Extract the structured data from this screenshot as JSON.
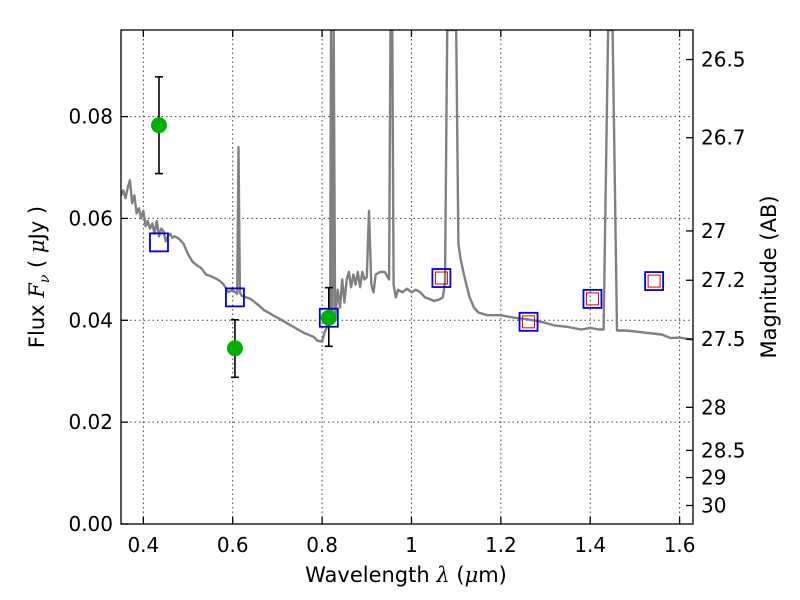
{
  "chart_data": {
    "type": "scatter",
    "title": "",
    "xlabel": "Wavelength",
    "xlabel_symbol": "λ",
    "xlabel_unit_open": " (",
    "xlabel_unit_symbol": "μ",
    "xlabel_unit_close": "m)",
    "ylabel": "Flux",
    "ylabel_symbol": "F",
    "ylabel_symbol_sub": "ν",
    "ylabel_unit_open": "(",
    "ylabel_unit_symbol": "μ",
    "ylabel_unit_close": "Jy )",
    "y2label": "Magnitude (AB)",
    "xlim": [
      0.35,
      1.63
    ],
    "ylim": [
      0.0,
      0.097
    ],
    "grid": true,
    "x_ticks": [
      {
        "value": 0.4,
        "label": "0.4"
      },
      {
        "value": 0.6,
        "label": "0.6"
      },
      {
        "value": 0.8,
        "label": "0.8"
      },
      {
        "value": 1.0,
        "label": "1"
      },
      {
        "value": 1.2,
        "label": "1.2"
      },
      {
        "value": 1.4,
        "label": "1.4"
      },
      {
        "value": 1.6,
        "label": "1.6"
      }
    ],
    "y_ticks": [
      {
        "value": 0.0,
        "label": "0.00"
      },
      {
        "value": 0.02,
        "label": "0.02"
      },
      {
        "value": 0.04,
        "label": "0.04"
      },
      {
        "value": 0.06,
        "label": "0.06"
      },
      {
        "value": 0.08,
        "label": "0.08"
      }
    ],
    "y2_ticks": [
      {
        "value": 26.5,
        "label": "26.5"
      },
      {
        "value": 26.7,
        "label": "26.7"
      },
      {
        "value": 27.0,
        "label": "27"
      },
      {
        "value": 27.2,
        "label": "27.2"
      },
      {
        "value": 27.5,
        "label": "27.5"
      },
      {
        "value": 28.0,
        "label": "28"
      },
      {
        "value": 28.5,
        "label": "28.5"
      },
      {
        "value": 29.0,
        "label": "29"
      },
      {
        "value": 30.0,
        "label": "30"
      }
    ],
    "model_spectrum": {
      "color": "#808080",
      "points": [
        [
          0.35,
          0.0645
        ],
        [
          0.355,
          0.0655
        ],
        [
          0.36,
          0.064
        ],
        [
          0.365,
          0.066
        ],
        [
          0.37,
          0.0675
        ],
        [
          0.375,
          0.063
        ],
        [
          0.38,
          0.0645
        ],
        [
          0.385,
          0.061
        ],
        [
          0.39,
          0.062
        ],
        [
          0.395,
          0.06
        ],
        [
          0.4,
          0.0615
        ],
        [
          0.405,
          0.0585
        ],
        [
          0.41,
          0.0595
        ],
        [
          0.415,
          0.058
        ],
        [
          0.42,
          0.059
        ],
        [
          0.425,
          0.057
        ],
        [
          0.43,
          0.0595
        ],
        [
          0.435,
          0.0565
        ],
        [
          0.44,
          0.058
        ],
        [
          0.445,
          0.0575
        ],
        [
          0.45,
          0.0555
        ],
        [
          0.455,
          0.0565
        ],
        [
          0.46,
          0.057
        ],
        [
          0.465,
          0.0562
        ],
        [
          0.47,
          0.0565
        ],
        [
          0.48,
          0.056
        ],
        [
          0.49,
          0.055
        ],
        [
          0.5,
          0.053
        ],
        [
          0.51,
          0.0515
        ],
        [
          0.52,
          0.0508
        ],
        [
          0.53,
          0.0502
        ],
        [
          0.54,
          0.049
        ],
        [
          0.55,
          0.0487
        ],
        [
          0.56,
          0.0483
        ],
        [
          0.57,
          0.0478
        ],
        [
          0.58,
          0.047
        ],
        [
          0.59,
          0.0455
        ],
        [
          0.6,
          0.046
        ],
        [
          0.605,
          0.0455
        ],
        [
          0.61,
          0.0452
        ],
        [
          0.613,
          0.074
        ],
        [
          0.616,
          0.0455
        ],
        [
          0.62,
          0.0448
        ],
        [
          0.63,
          0.0445
        ],
        [
          0.64,
          0.0442
        ],
        [
          0.65,
          0.0435
        ],
        [
          0.66,
          0.0428
        ],
        [
          0.67,
          0.042
        ],
        [
          0.68,
          0.0415
        ],
        [
          0.69,
          0.041
        ],
        [
          0.7,
          0.0405
        ],
        [
          0.72,
          0.0395
        ],
        [
          0.74,
          0.0385
        ],
        [
          0.76,
          0.0375
        ],
        [
          0.78,
          0.0368
        ],
        [
          0.79,
          0.036
        ],
        [
          0.8,
          0.0358
        ],
        [
          0.805,
          0.0375
        ],
        [
          0.81,
          0.0385
        ],
        [
          0.815,
          0.04
        ],
        [
          0.818,
          0.042
        ],
        [
          0.82,
          0.097
        ],
        [
          0.823,
          0.042
        ],
        [
          0.826,
          0.097
        ],
        [
          0.829,
          0.04
        ],
        [
          0.835,
          0.046
        ],
        [
          0.84,
          0.0425
        ],
        [
          0.845,
          0.048
        ],
        [
          0.85,
          0.0435
        ],
        [
          0.855,
          0.048
        ],
        [
          0.86,
          0.0495
        ],
        [
          0.865,
          0.0465
        ],
        [
          0.87,
          0.049
        ],
        [
          0.875,
          0.047
        ],
        [
          0.88,
          0.0495
        ],
        [
          0.885,
          0.0465
        ],
        [
          0.89,
          0.0495
        ],
        [
          0.895,
          0.048
        ],
        [
          0.9,
          0.0485
        ],
        [
          0.905,
          0.0615
        ],
        [
          0.91,
          0.047
        ],
        [
          0.915,
          0.0455
        ],
        [
          0.92,
          0.049
        ],
        [
          0.93,
          0.0495
        ],
        [
          0.94,
          0.0495
        ],
        [
          0.95,
          0.048
        ],
        [
          0.953,
          0.097
        ],
        [
          0.957,
          0.097
        ],
        [
          0.96,
          0.047
        ],
        [
          0.965,
          0.0445
        ],
        [
          0.97,
          0.046
        ],
        [
          0.98,
          0.0455
        ],
        [
          0.99,
          0.0462
        ],
        [
          1.0,
          0.0455
        ],
        [
          1.01,
          0.046
        ],
        [
          1.02,
          0.0455
        ],
        [
          1.03,
          0.0445
        ],
        [
          1.04,
          0.0442
        ],
        [
          1.05,
          0.0438
        ],
        [
          1.06,
          0.044
        ],
        [
          1.07,
          0.0445
        ],
        [
          1.075,
          0.0475
        ],
        [
          1.08,
          0.097
        ],
        [
          1.09,
          0.097
        ],
        [
          1.1,
          0.097
        ],
        [
          1.105,
          0.055
        ],
        [
          1.11,
          0.052
        ],
        [
          1.12,
          0.048
        ],
        [
          1.13,
          0.0445
        ],
        [
          1.14,
          0.0425
        ],
        [
          1.15,
          0.0415
        ],
        [
          1.17,
          0.041
        ],
        [
          1.2,
          0.041
        ],
        [
          1.23,
          0.0405
        ],
        [
          1.26,
          0.0402
        ],
        [
          1.29,
          0.0397
        ],
        [
          1.32,
          0.039
        ],
        [
          1.35,
          0.0387
        ],
        [
          1.38,
          0.0382
        ],
        [
          1.4,
          0.0385
        ],
        [
          1.42,
          0.0382
        ],
        [
          1.43,
          0.0382
        ],
        [
          1.44,
          0.097
        ],
        [
          1.45,
          0.097
        ],
        [
          1.46,
          0.038
        ],
        [
          1.48,
          0.038
        ],
        [
          1.5,
          0.0378
        ],
        [
          1.53,
          0.0375
        ],
        [
          1.56,
          0.0372
        ],
        [
          1.58,
          0.0365
        ],
        [
          1.6,
          0.0366
        ],
        [
          1.62,
          0.0363
        ],
        [
          1.63,
          0.0362
        ]
      ]
    },
    "series": [
      {
        "role": "observed",
        "marker": "circle",
        "color": "#00b000",
        "points": [
          {
            "x": 0.435,
            "y": 0.0783,
            "yerr_low": 0.0688,
            "yerr_high": 0.0878
          },
          {
            "x": 0.605,
            "y": 0.0345,
            "yerr_low": 0.0288,
            "yerr_high": 0.0401
          },
          {
            "x": 0.815,
            "y": 0.0405,
            "yerr_low": 0.0349,
            "yerr_high": 0.0464
          }
        ]
      },
      {
        "role": "model_band",
        "marker": "square-open",
        "color": "#0000dd",
        "points": [
          {
            "x": 0.435,
            "y": 0.0553
          },
          {
            "x": 0.605,
            "y": 0.0445
          },
          {
            "x": 0.815,
            "y": 0.0405
          },
          {
            "x": 1.067,
            "y": 0.0483
          },
          {
            "x": 1.262,
            "y": 0.0397
          },
          {
            "x": 1.405,
            "y": 0.0442
          },
          {
            "x": 1.543,
            "y": 0.0477
          }
        ]
      },
      {
        "role": "model_band_inner",
        "marker": "square-open-small",
        "color": "#dd0000",
        "points": [
          {
            "x": 1.067,
            "y": 0.0483
          },
          {
            "x": 1.262,
            "y": 0.0397
          },
          {
            "x": 1.405,
            "y": 0.0442
          },
          {
            "x": 1.543,
            "y": 0.0477
          }
        ]
      }
    ]
  }
}
